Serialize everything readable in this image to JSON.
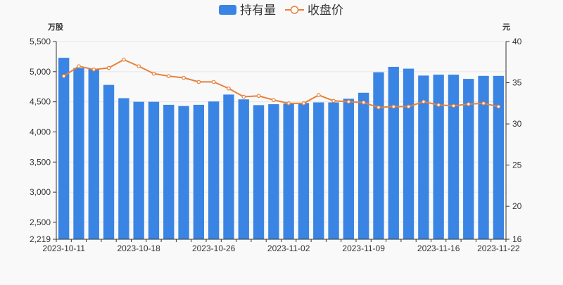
{
  "chart_data": {
    "type": "bar+line",
    "legend": {
      "position": "top-center"
    },
    "left_axis_unit": "万股",
    "right_axis_unit": "元",
    "left_ticks": [
      "5,500",
      "5,000",
      "4,500",
      "4,000",
      "3,500",
      "3,000",
      "2,500",
      "2,219"
    ],
    "left_tick_values": [
      5500,
      5000,
      4500,
      4000,
      3500,
      3000,
      2500,
      2219
    ],
    "left_range": [
      2219,
      5500
    ],
    "right_ticks": [
      "40",
      "35",
      "30",
      "25",
      "20",
      "16"
    ],
    "right_tick_values": [
      40,
      35,
      30,
      25,
      20,
      16
    ],
    "right_range": [
      16,
      40
    ],
    "x_tick_labels": [
      {
        "index": 0,
        "label": "2023-10-11"
      },
      {
        "index": 5,
        "label": "2023-10-18"
      },
      {
        "index": 10,
        "label": "2023-10-26"
      },
      {
        "index": 15,
        "label": "2023-11-02"
      },
      {
        "index": 20,
        "label": "2023-11-09"
      },
      {
        "index": 25,
        "label": "2023-11-16"
      },
      {
        "index": 29,
        "label": "2023-11-22"
      }
    ],
    "series": [
      {
        "name": "持有量",
        "type": "bar",
        "axis": "left",
        "color": "#3a85e3",
        "values": [
          5230,
          5060,
          5050,
          4780,
          4560,
          4500,
          4500,
          4450,
          4430,
          4450,
          4505,
          4620,
          4540,
          4445,
          4460,
          4470,
          4480,
          4490,
          4490,
          4550,
          4650,
          4990,
          5080,
          5050,
          4935,
          4950,
          4950,
          4880,
          4930,
          4930
        ]
      },
      {
        "name": "收盘价",
        "type": "line",
        "axis": "right",
        "color": "#e8803a",
        "values": [
          35.8,
          37.0,
          36.6,
          36.8,
          37.8,
          37.0,
          36.1,
          35.8,
          35.6,
          35.1,
          35.1,
          34.3,
          33.3,
          33.4,
          32.9,
          32.5,
          32.5,
          33.5,
          32.8,
          32.7,
          32.6,
          32.0,
          32.1,
          32.1,
          32.7,
          32.3,
          32.2,
          32.4,
          32.5,
          32.1
        ]
      }
    ]
  }
}
